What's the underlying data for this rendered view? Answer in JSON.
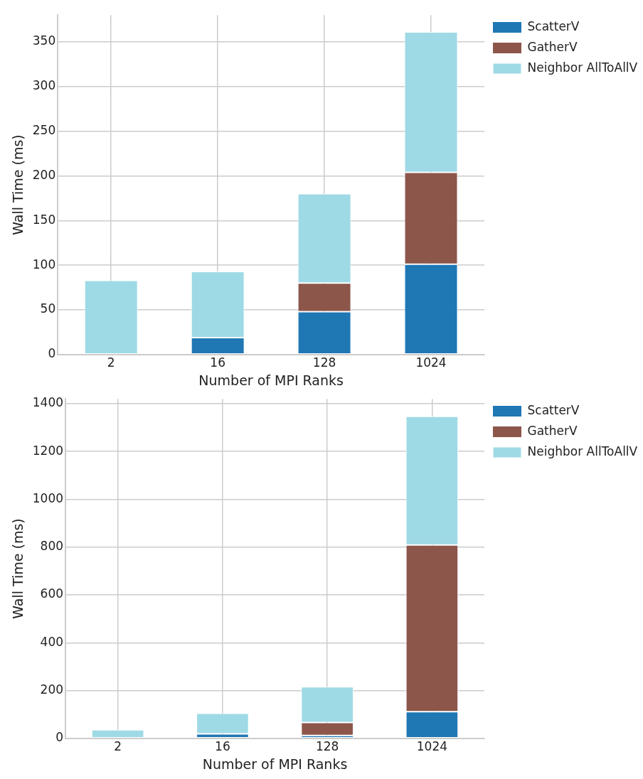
{
  "chart_data": [
    {
      "type": "bar",
      "stacked": true,
      "xlabel": "Number of MPI Ranks",
      "ylabel": "Wall Time (ms)",
      "categories": [
        "2",
        "16",
        "128",
        "1024"
      ],
      "series": [
        {
          "name": "ScatterV",
          "color": "#1f77b4",
          "values": [
            0,
            19,
            48,
            101
          ]
        },
        {
          "name": "GatherV",
          "color": "#8c564b",
          "values": [
            0,
            0,
            32,
            103
          ]
        },
        {
          "name": "Neighbor AllToAllV",
          "color": "#9edae5",
          "values": [
            83,
            74,
            100,
            157
          ]
        }
      ],
      "ylim": [
        0,
        380
      ],
      "yticks": [
        0,
        50,
        100,
        150,
        200,
        250,
        300,
        350
      ],
      "grid": true,
      "legend": "top right"
    },
    {
      "type": "bar",
      "stacked": true,
      "xlabel": "Number of MPI Ranks",
      "ylabel": "Wall Time (ms)",
      "categories": [
        "2",
        "16",
        "128",
        "1024"
      ],
      "series": [
        {
          "name": "ScatterV",
          "color": "#1f77b4",
          "values": [
            0,
            19,
            12,
            112
          ]
        },
        {
          "name": "GatherV",
          "color": "#8c564b",
          "values": [
            0,
            0,
            54,
            697
          ]
        },
        {
          "name": "Neighbor AllToAllV",
          "color": "#9edae5",
          "values": [
            36,
            86,
            150,
            538
          ]
        }
      ],
      "ylim": [
        0,
        1420
      ],
      "yticks": [
        0,
        200,
        400,
        600,
        800,
        1000,
        1200,
        1400
      ],
      "grid": true,
      "legend": "top right"
    }
  ]
}
